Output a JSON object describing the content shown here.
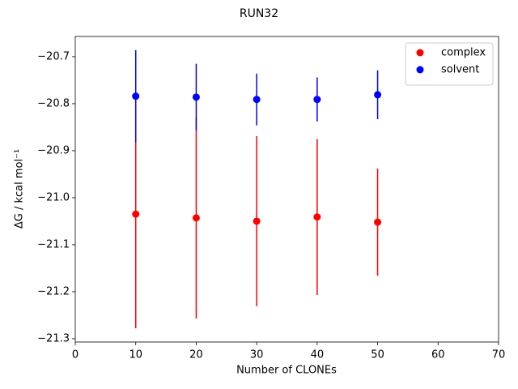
{
  "chart_data": {
    "type": "errorbar-scatter",
    "title": "RUN32",
    "x_label": "Number of CLONEs",
    "y_label": "ΔG / kcal mol⁻¹",
    "x": [
      10,
      20,
      30,
      40,
      50
    ],
    "series": [
      {
        "name": "complex",
        "color": "#ff0000",
        "values": [
          -21.035,
          -21.043,
          -21.05,
          -21.041,
          -21.052
        ],
        "errors": [
          0.243,
          0.214,
          0.181,
          0.166,
          0.114
        ]
      },
      {
        "name": "solvent",
        "color": "#0000ff",
        "values": [
          -20.784,
          -20.786,
          -20.791,
          -20.791,
          -20.781
        ],
        "errors": [
          0.098,
          0.071,
          0.055,
          0.047,
          0.052
        ]
      }
    ],
    "xlim": [
      0,
      70
    ],
    "xticks": [
      0,
      10,
      20,
      30,
      40,
      50,
      60,
      70
    ],
    "ylim": [
      -21.307,
      -20.657
    ],
    "yticks": [
      {
        "value": -21.3,
        "label": "−21.3"
      },
      {
        "value": -21.2,
        "label": "−21.2"
      },
      {
        "value": -21.1,
        "label": "−21.1"
      },
      {
        "value": -21.0,
        "label": "−21.0"
      },
      {
        "value": -20.9,
        "label": "−20.9"
      },
      {
        "value": -20.8,
        "label": "−20.8"
      },
      {
        "value": -20.7,
        "label": "−20.7"
      }
    ],
    "grid": false,
    "legend": "upper-right"
  }
}
